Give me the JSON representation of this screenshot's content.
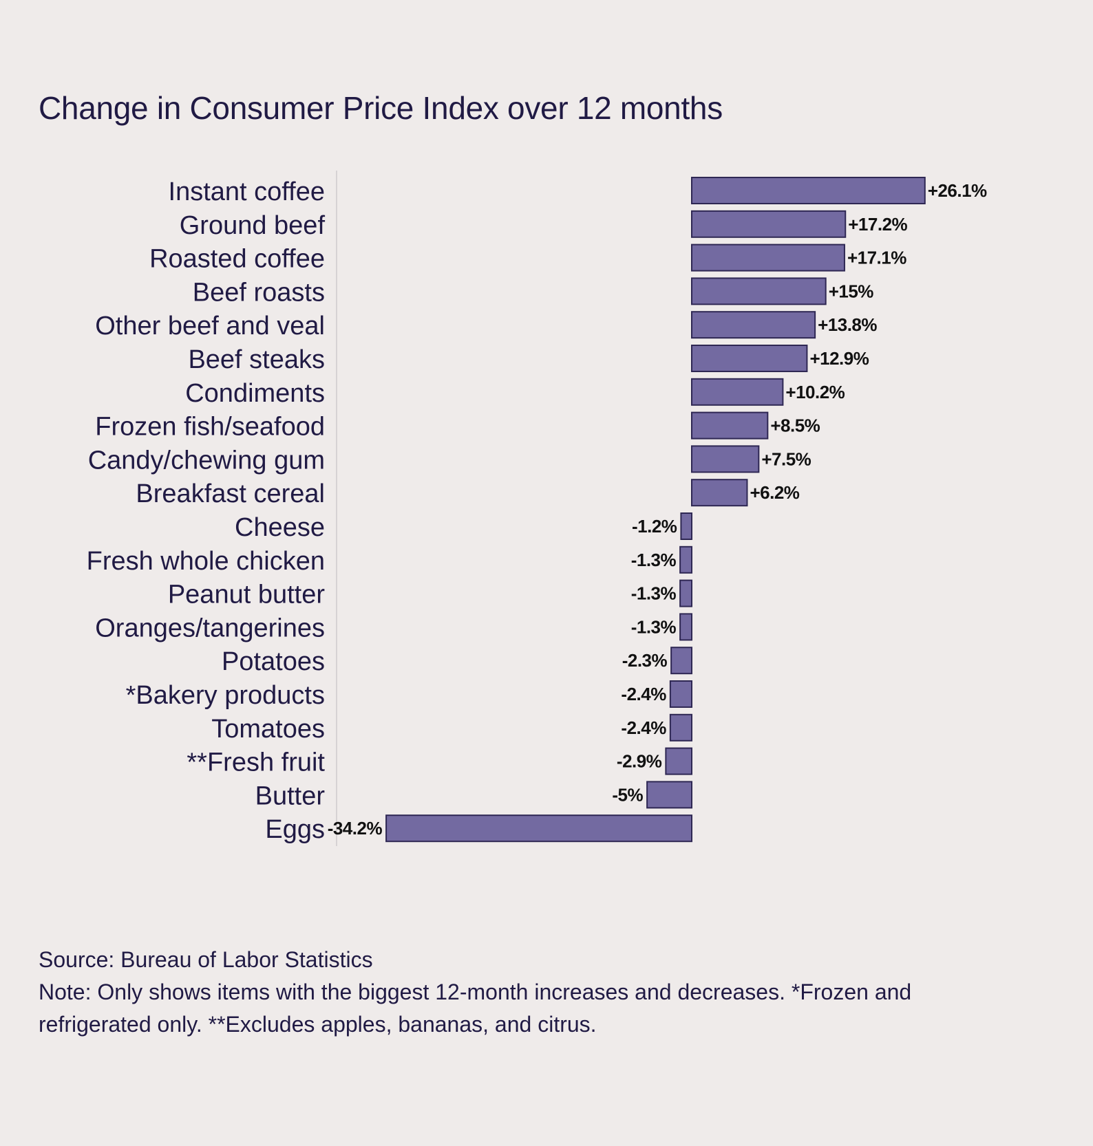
{
  "chart_data": {
    "type": "bar",
    "orientation": "horizontal",
    "title": "Change in Consumer Price Index over 12 months",
    "xlabel": "",
    "ylabel": "",
    "grid": false,
    "categories": [
      "Instant coffee",
      "Ground beef",
      "Roasted coffee",
      "Beef roasts",
      "Other beef and veal",
      "Beef steaks",
      "Condiments",
      "Frozen fish/seafood",
      "Candy/chewing gum",
      "Breakfast cereal",
      "Cheese",
      "Fresh whole chicken",
      "Peanut butter",
      "Oranges/tangerines",
      "Potatoes",
      "*Bakery products",
      "Tomatoes",
      "**Fresh fruit",
      "Butter",
      "Eggs"
    ],
    "values": [
      26.1,
      17.2,
      17.1,
      15,
      13.8,
      12.9,
      10.2,
      8.5,
      7.5,
      6.2,
      -1.2,
      -1.3,
      -1.3,
      -1.3,
      -2.3,
      -2.4,
      -2.4,
      -2.9,
      -5,
      -34.2
    ],
    "data_labels": [
      "+26.1%",
      "+17.2%",
      "+17.1%",
      "+15%",
      "+13.8%",
      "+12.9%",
      "+10.2%",
      "+8.5%",
      "+7.5%",
      "+6.2%",
      "-1.2%",
      "-1.3%",
      "-1.3%",
      "-1.3%",
      "-2.3%",
      "-2.4%",
      "-2.4%",
      "-2.9%",
      "-5%",
      "-34.2%"
    ],
    "xlim": [
      -34.2,
      26.1
    ],
    "unit": "%",
    "colors": {
      "bar_fill": "#736aa1",
      "bar_stroke": "#2e2753",
      "label_text": "#111111",
      "category_text": "#201a44",
      "axis_line": "#d6d2d4"
    }
  },
  "footer": {
    "source": "Source: Bureau of Labor Statistics",
    "note": "Note: Only shows items with the biggest 12-month increases and decreases. *Frozen and refrigerated only. **Excludes apples, bananas, and citrus."
  }
}
